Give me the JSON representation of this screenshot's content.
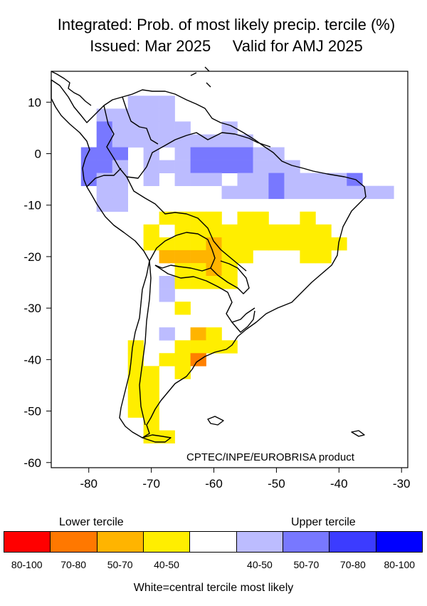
{
  "title_line1": "Integrated: Prob. of most likely precip. tercile (%)",
  "title_line2": "Issued: Mar 2025     Valid for AMJ 2025",
  "credit": "CPTEC/INPE/EUROBRISA product",
  "map": {
    "lon_range": [
      -86,
      -29
    ],
    "lat_range": [
      -61,
      16
    ],
    "x_ticks": [
      -80,
      -70,
      -60,
      -50,
      -40,
      -30
    ],
    "y_ticks": [
      10,
      0,
      -10,
      -20,
      -30,
      -40,
      -50,
      -60
    ],
    "grid_step_deg": 2.5,
    "colors": {
      "L1": "#ffee00",
      "L2": "#ffb400",
      "L3": "#ff8000",
      "U1": "#bcbcff",
      "U2": "#7878ff"
    },
    "probability_cells": [
      {
        "lon": -72.5,
        "lat": 10,
        "cat": "U1"
      },
      {
        "lon": -70,
        "lat": 10,
        "cat": "U1"
      },
      {
        "lon": -67.5,
        "lat": 10,
        "cat": "U1"
      },
      {
        "lon": -77.5,
        "lat": 7.5,
        "cat": "U1"
      },
      {
        "lon": -75,
        "lat": 7.5,
        "cat": "U1"
      },
      {
        "lon": -72.5,
        "lat": 7.5,
        "cat": "U1"
      },
      {
        "lon": -70,
        "lat": 7.5,
        "cat": "U1"
      },
      {
        "lon": -67.5,
        "lat": 7.5,
        "cat": "U1"
      },
      {
        "lon": -77.5,
        "lat": 5,
        "cat": "U2"
      },
      {
        "lon": -75,
        "lat": 5,
        "cat": "U1"
      },
      {
        "lon": -72.5,
        "lat": 5,
        "cat": "U1"
      },
      {
        "lon": -70,
        "lat": 5,
        "cat": "U1"
      },
      {
        "lon": -67.5,
        "lat": 5,
        "cat": "U1"
      },
      {
        "lon": -65,
        "lat": 5,
        "cat": "U1"
      },
      {
        "lon": -57.5,
        "lat": 5,
        "cat": "U1"
      },
      {
        "lon": -77.5,
        "lat": 2.5,
        "cat": "U2"
      },
      {
        "lon": -75,
        "lat": 2.5,
        "cat": "U1"
      },
      {
        "lon": -72.5,
        "lat": 2.5,
        "cat": "U1"
      },
      {
        "lon": -70,
        "lat": 2.5,
        "cat": "U1"
      },
      {
        "lon": -67.5,
        "lat": 2.5,
        "cat": "U1"
      },
      {
        "lon": -65,
        "lat": 2.5,
        "cat": "U1"
      },
      {
        "lon": -62.5,
        "lat": 2.5,
        "cat": "U1"
      },
      {
        "lon": -60,
        "lat": 2.5,
        "cat": "U1"
      },
      {
        "lon": -57.5,
        "lat": 2.5,
        "cat": "U1"
      },
      {
        "lon": -55,
        "lat": 2.5,
        "cat": "U1"
      },
      {
        "lon": -80,
        "lat": 0,
        "cat": "U2"
      },
      {
        "lon": -77.5,
        "lat": 0,
        "cat": "U2"
      },
      {
        "lon": -75,
        "lat": 0,
        "cat": "U2"
      },
      {
        "lon": -70,
        "lat": 0,
        "cat": "U1"
      },
      {
        "lon": -65,
        "lat": 0,
        "cat": "U1"
      },
      {
        "lon": -62.5,
        "lat": 0,
        "cat": "U2"
      },
      {
        "lon": -60,
        "lat": 0,
        "cat": "U2"
      },
      {
        "lon": -57.5,
        "lat": 0,
        "cat": "U2"
      },
      {
        "lon": -55,
        "lat": 0,
        "cat": "U2"
      },
      {
        "lon": -52.5,
        "lat": 0,
        "cat": "U1"
      },
      {
        "lon": -50,
        "lat": 0,
        "cat": "U1"
      },
      {
        "lon": -80,
        "lat": -2.5,
        "cat": "U2"
      },
      {
        "lon": -77.5,
        "lat": -2.5,
        "cat": "U2"
      },
      {
        "lon": -75,
        "lat": -2.5,
        "cat": "U1"
      },
      {
        "lon": -70,
        "lat": -2.5,
        "cat": "U1"
      },
      {
        "lon": -67.5,
        "lat": -2.5,
        "cat": "U1"
      },
      {
        "lon": -65,
        "lat": -2.5,
        "cat": "U1"
      },
      {
        "lon": -62.5,
        "lat": -2.5,
        "cat": "U2"
      },
      {
        "lon": -60,
        "lat": -2.5,
        "cat": "U2"
      },
      {
        "lon": -57.5,
        "lat": -2.5,
        "cat": "U2"
      },
      {
        "lon": -55,
        "lat": -2.5,
        "cat": "U2"
      },
      {
        "lon": -52.5,
        "lat": -2.5,
        "cat": "U1"
      },
      {
        "lon": -50,
        "lat": -2.5,
        "cat": "U1"
      },
      {
        "lon": -47.5,
        "lat": -2.5,
        "cat": "U1"
      },
      {
        "lon": -80,
        "lat": -5,
        "cat": "U2"
      },
      {
        "lon": -77.5,
        "lat": -5,
        "cat": "U1"
      },
      {
        "lon": -75,
        "lat": -5,
        "cat": "U1"
      },
      {
        "lon": -70,
        "lat": -5,
        "cat": "U1"
      },
      {
        "lon": -65,
        "lat": -5,
        "cat": "U1"
      },
      {
        "lon": -62.5,
        "lat": -5,
        "cat": "U1"
      },
      {
        "lon": -60,
        "lat": -5,
        "cat": "U1"
      },
      {
        "lon": -55,
        "lat": -5,
        "cat": "U1"
      },
      {
        "lon": -52.5,
        "lat": -5,
        "cat": "U1"
      },
      {
        "lon": -50,
        "lat": -5,
        "cat": "U2"
      },
      {
        "lon": -47.5,
        "lat": -5,
        "cat": "U1"
      },
      {
        "lon": -45,
        "lat": -5,
        "cat": "U1"
      },
      {
        "lon": -42.5,
        "lat": -5,
        "cat": "U1"
      },
      {
        "lon": -40,
        "lat": -5,
        "cat": "U1"
      },
      {
        "lon": -37.5,
        "lat": -5,
        "cat": "U2"
      },
      {
        "lon": -77.5,
        "lat": -7.5,
        "cat": "U1"
      },
      {
        "lon": -75,
        "lat": -7.5,
        "cat": "U1"
      },
      {
        "lon": -57.5,
        "lat": -7.5,
        "cat": "U1"
      },
      {
        "lon": -55,
        "lat": -7.5,
        "cat": "U1"
      },
      {
        "lon": -52.5,
        "lat": -7.5,
        "cat": "U1"
      },
      {
        "lon": -50,
        "lat": -7.5,
        "cat": "U2"
      },
      {
        "lon": -47.5,
        "lat": -7.5,
        "cat": "U1"
      },
      {
        "lon": -45,
        "lat": -7.5,
        "cat": "U1"
      },
      {
        "lon": -42.5,
        "lat": -7.5,
        "cat": "U1"
      },
      {
        "lon": -40,
        "lat": -7.5,
        "cat": "U1"
      },
      {
        "lon": -37.5,
        "lat": -7.5,
        "cat": "U1"
      },
      {
        "lon": -35,
        "lat": -7.5,
        "cat": "U1"
      },
      {
        "lon": -32.5,
        "lat": -7.5,
        "cat": "U1"
      },
      {
        "lon": -77.5,
        "lat": -10,
        "cat": "U1"
      },
      {
        "lon": -75,
        "lat": -10,
        "cat": "U1"
      },
      {
        "lon": -67.5,
        "lat": -12.5,
        "cat": "L1"
      },
      {
        "lon": -65,
        "lat": -12.5,
        "cat": "L1"
      },
      {
        "lon": -62.5,
        "lat": -12.5,
        "cat": "L1"
      },
      {
        "lon": -60,
        "lat": -12.5,
        "cat": "L1"
      },
      {
        "lon": -55,
        "lat": -12.5,
        "cat": "L1"
      },
      {
        "lon": -52.5,
        "lat": -12.5,
        "cat": "L1"
      },
      {
        "lon": -45,
        "lat": -12.5,
        "cat": "L1"
      },
      {
        "lon": -70,
        "lat": -15,
        "cat": "L1"
      },
      {
        "lon": -65,
        "lat": -15,
        "cat": "L1"
      },
      {
        "lon": -62.5,
        "lat": -15,
        "cat": "L1"
      },
      {
        "lon": -60,
        "lat": -15,
        "cat": "L1"
      },
      {
        "lon": -57.5,
        "lat": -15,
        "cat": "L1"
      },
      {
        "lon": -55,
        "lat": -15,
        "cat": "L1"
      },
      {
        "lon": -52.5,
        "lat": -15,
        "cat": "L1"
      },
      {
        "lon": -50,
        "lat": -15,
        "cat": "L1"
      },
      {
        "lon": -47.5,
        "lat": -15,
        "cat": "L1"
      },
      {
        "lon": -45,
        "lat": -15,
        "cat": "L1"
      },
      {
        "lon": -42.5,
        "lat": -15,
        "cat": "L1"
      },
      {
        "lon": -70,
        "lat": -17.5,
        "cat": "L1"
      },
      {
        "lon": -67.5,
        "lat": -17.5,
        "cat": "L1"
      },
      {
        "lon": -65,
        "lat": -17.5,
        "cat": "L1"
      },
      {
        "lon": -62.5,
        "lat": -17.5,
        "cat": "L1"
      },
      {
        "lon": -60,
        "lat": -17.5,
        "cat": "L2"
      },
      {
        "lon": -57.5,
        "lat": -17.5,
        "cat": "L1"
      },
      {
        "lon": -55,
        "lat": -17.5,
        "cat": "L1"
      },
      {
        "lon": -52.5,
        "lat": -17.5,
        "cat": "L1"
      },
      {
        "lon": -50,
        "lat": -17.5,
        "cat": "L1"
      },
      {
        "lon": -47.5,
        "lat": -17.5,
        "cat": "L1"
      },
      {
        "lon": -45,
        "lat": -17.5,
        "cat": "L1"
      },
      {
        "lon": -42.5,
        "lat": -17.5,
        "cat": "L1"
      },
      {
        "lon": -40,
        "lat": -17.5,
        "cat": "L1"
      },
      {
        "lon": -67.5,
        "lat": -20,
        "cat": "L2"
      },
      {
        "lon": -65,
        "lat": -20,
        "cat": "L2"
      },
      {
        "lon": -62.5,
        "lat": -20,
        "cat": "L2"
      },
      {
        "lon": -60,
        "lat": -20,
        "cat": "L2"
      },
      {
        "lon": -57.5,
        "lat": -20,
        "cat": "L1"
      },
      {
        "lon": -55,
        "lat": -20,
        "cat": "L1"
      },
      {
        "lon": -45,
        "lat": -20,
        "cat": "L1"
      },
      {
        "lon": -42.5,
        "lat": -20,
        "cat": "L1"
      },
      {
        "lon": -65,
        "lat": -22.5,
        "cat": "L1"
      },
      {
        "lon": -62.5,
        "lat": -22.5,
        "cat": "L1"
      },
      {
        "lon": -60,
        "lat": -22.5,
        "cat": "L2"
      },
      {
        "lon": -57.5,
        "lat": -22.5,
        "cat": "L1"
      },
      {
        "lon": -67.5,
        "lat": -25,
        "cat": "U1"
      },
      {
        "lon": -65,
        "lat": -25,
        "cat": "L1"
      },
      {
        "lon": -62.5,
        "lat": -25,
        "cat": "L1"
      },
      {
        "lon": -60,
        "lat": -25,
        "cat": "L1"
      },
      {
        "lon": -57.5,
        "lat": -25,
        "cat": "L1"
      },
      {
        "lon": -67.5,
        "lat": -27.5,
        "cat": "U1"
      },
      {
        "lon": -65,
        "lat": -30,
        "cat": "L1"
      },
      {
        "lon": -67.5,
        "lat": -35,
        "cat": "U1"
      },
      {
        "lon": -62.5,
        "lat": -35,
        "cat": "L2"
      },
      {
        "lon": -60,
        "lat": -35,
        "cat": "L1"
      },
      {
        "lon": -72.5,
        "lat": -37.5,
        "cat": "L1"
      },
      {
        "lon": -65,
        "lat": -37.5,
        "cat": "L1"
      },
      {
        "lon": -62.5,
        "lat": -37.5,
        "cat": "L1"
      },
      {
        "lon": -60,
        "lat": -37.5,
        "cat": "L1"
      },
      {
        "lon": -57.5,
        "lat": -37.5,
        "cat": "L1"
      },
      {
        "lon": -72.5,
        "lat": -40,
        "cat": "L1"
      },
      {
        "lon": -67.5,
        "lat": -40,
        "cat": "L1"
      },
      {
        "lon": -65,
        "lat": -40,
        "cat": "L1"
      },
      {
        "lon": -62.5,
        "lat": -40,
        "cat": "L3"
      },
      {
        "lon": -72.5,
        "lat": -42.5,
        "cat": "L1"
      },
      {
        "lon": -70,
        "lat": -42.5,
        "cat": "L1"
      },
      {
        "lon": -65,
        "lat": -42.5,
        "cat": "L1"
      },
      {
        "lon": -72.5,
        "lat": -45,
        "cat": "L1"
      },
      {
        "lon": -70,
        "lat": -45,
        "cat": "L1"
      },
      {
        "lon": -72.5,
        "lat": -47.5,
        "cat": "L1"
      },
      {
        "lon": -70,
        "lat": -47.5,
        "cat": "L1"
      },
      {
        "lon": -72.5,
        "lat": -50,
        "cat": "L1"
      },
      {
        "lon": -70,
        "lat": -50,
        "cat": "L1"
      },
      {
        "lon": -70,
        "lat": -52.5,
        "cat": "L1"
      },
      {
        "lon": -70,
        "lat": -55,
        "cat": "L1"
      },
      {
        "lon": -67.5,
        "lat": -55,
        "cat": "L1"
      }
    ]
  },
  "legend": {
    "lower_title": "Lower tercile",
    "upper_title": "Upper tercile",
    "items": [
      {
        "label": "80-100",
        "color": "#ff0000"
      },
      {
        "label": "70-80",
        "color": "#ff7800"
      },
      {
        "label": "50-70",
        "color": "#ffb400"
      },
      {
        "label": "40-50",
        "color": "#ffee00"
      },
      {
        "label": "",
        "color": "#ffffff"
      },
      {
        "label": "40-50",
        "color": "#bcbcff"
      },
      {
        "label": "50-70",
        "color": "#7878ff"
      },
      {
        "label": "70-80",
        "color": "#3c3cff"
      },
      {
        "label": "80-100",
        "color": "#0000ff"
      }
    ],
    "footer": "White=central tercile most likely"
  }
}
